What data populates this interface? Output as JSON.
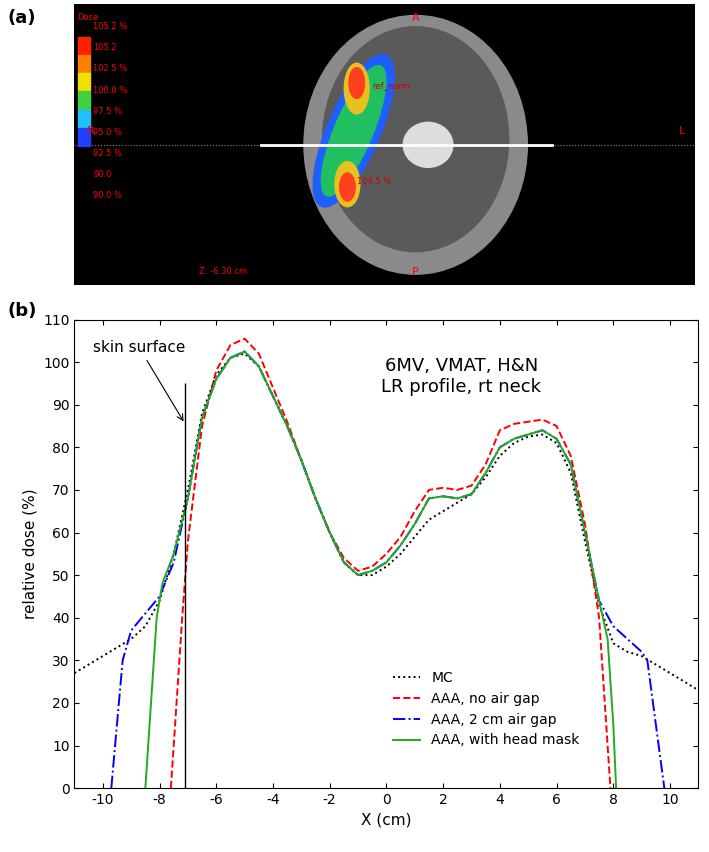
{
  "panel_a": {
    "label": "(a)",
    "colorbar_title": "Dose",
    "colorbar_labels": [
      "105.2 %",
      "105.2",
      "102.5 %",
      "100.0 %",
      "97.5 %",
      "95.0 %",
      "92.5 %",
      "90.0",
      "90.0 %"
    ],
    "orientation_labels": {
      "anterior": "A",
      "posterior": "P",
      "right": "R",
      "left": "L"
    },
    "point_labels": [
      "ref_norm",
      "104.5 %"
    ],
    "slice_label": "Z: -6.30 cm"
  },
  "chart_data": {
    "type": "line",
    "panel": "(b)",
    "annotations": [
      "6MV, VMAT, H&N\nLR profile, rt neck"
    ],
    "skin_surface": {
      "text": "skin surface",
      "x": -7.1,
      "ymax": 95
    },
    "x_label": "X (cm)",
    "y_label": "relative dose (%)",
    "xlim": [
      -11,
      11
    ],
    "xticks": [
      -10,
      -8,
      -6,
      -4,
      -2,
      0,
      2,
      4,
      6,
      8,
      10
    ],
    "ylim": [
      0,
      110
    ],
    "yticks": [
      0,
      10,
      20,
      30,
      40,
      50,
      60,
      70,
      80,
      90,
      100,
      110
    ],
    "legend": "lower center",
    "series": [
      {
        "name": "MC",
        "color": "#000000",
        "line_style": "dotted",
        "x": [
          -11,
          -10,
          -9,
          -8.5,
          -8,
          -7.5,
          -7,
          -6.5,
          -6,
          -5.5,
          -5,
          -4.5,
          -4,
          -3.5,
          -3,
          -2.5,
          -2,
          -1.5,
          -1,
          -0.5,
          0,
          0.5,
          1,
          1.5,
          2,
          2.5,
          3,
          3.5,
          4,
          4.5,
          5,
          5.5,
          6,
          6.5,
          7,
          7.5,
          8,
          8.5,
          9,
          9.5,
          10,
          10.5,
          11
        ],
        "values": [
          27,
          31,
          35,
          38,
          44,
          55,
          70,
          88,
          97,
          101,
          102,
          99,
          92,
          85,
          77,
          68,
          60,
          53,
          50,
          50,
          52,
          55,
          59,
          63,
          65,
          67,
          69,
          73,
          78,
          81,
          82.5,
          83,
          81,
          74,
          58,
          43,
          34,
          32,
          31,
          29,
          27,
          25,
          23
        ]
      },
      {
        "name": "AAA, no air gap",
        "color": "#ff0000",
        "line_style": "dashed",
        "x": [
          -7.6,
          -7.4,
          -7.2,
          -7,
          -6.5,
          -6,
          -5.5,
          -5,
          -4.5,
          -4,
          -3.5,
          -3,
          -2.5,
          -2,
          -1.5,
          -1,
          -0.5,
          0,
          0.5,
          1,
          1.5,
          2,
          2.5,
          3,
          3.5,
          4,
          4.5,
          5,
          5.5,
          6,
          6.5,
          7,
          7.5,
          7.8,
          7.9
        ],
        "values": [
          0,
          20,
          40,
          58,
          85,
          98,
          104,
          105.5,
          102,
          94,
          86,
          77,
          68,
          60,
          54,
          51,
          52,
          55,
          59,
          65,
          70,
          70.5,
          70,
          71,
          76,
          84,
          85.5,
          86,
          86.5,
          85,
          78,
          62,
          40,
          10,
          0
        ]
      },
      {
        "name": "AAA, 2 cm air gap",
        "color": "#0000ff",
        "line_style": "dashdot",
        "x": [
          -9.7,
          -9.5,
          -9.3,
          -9,
          -8.5,
          -8,
          -7.5,
          -7,
          -6.5,
          -6,
          -5.5,
          -5,
          -4.5,
          -4,
          -3.5,
          -3,
          -2.5,
          -2,
          -1.5,
          -1,
          -0.5,
          0,
          0.5,
          1,
          1.5,
          2,
          2.5,
          3,
          3.5,
          4,
          4.5,
          5,
          5.5,
          6,
          6.5,
          7,
          7.5,
          8,
          8.5,
          9,
          9.2,
          9.5,
          9.7,
          9.8
        ],
        "values": [
          0,
          15,
          30,
          37,
          41,
          45,
          53,
          68,
          87,
          96,
          101,
          102.5,
          99,
          92,
          85,
          77,
          68,
          60,
          53,
          50,
          51,
          53,
          57,
          62,
          68,
          68.5,
          68,
          69,
          74,
          80,
          82,
          83,
          84,
          82,
          76,
          60,
          44,
          38,
          35,
          32,
          30,
          15,
          5,
          0
        ]
      },
      {
        "name": "AAA, with head mask",
        "color": "#22aa22",
        "line_style": "solid",
        "x": [
          -8.5,
          -8.3,
          -8.1,
          -7.9,
          -7.5,
          -7,
          -6.5,
          -6,
          -5.5,
          -5,
          -4.5,
          -4,
          -3.5,
          -3,
          -2.5,
          -2,
          -1.5,
          -1,
          -0.5,
          0,
          0.5,
          1,
          1.5,
          2,
          2.5,
          3,
          3.5,
          4,
          4.5,
          5,
          5.5,
          6,
          6.5,
          7,
          7.5,
          7.8,
          8,
          8.1
        ],
        "values": [
          0,
          20,
          40,
          48,
          55,
          68,
          87,
          96,
          101,
          102.5,
          99,
          92,
          85,
          77,
          68,
          60,
          53,
          50,
          51,
          53,
          57,
          62,
          68,
          68.5,
          68,
          69,
          74,
          80,
          82,
          83,
          84,
          82,
          76,
          60,
          44,
          35,
          15,
          0
        ]
      }
    ]
  }
}
